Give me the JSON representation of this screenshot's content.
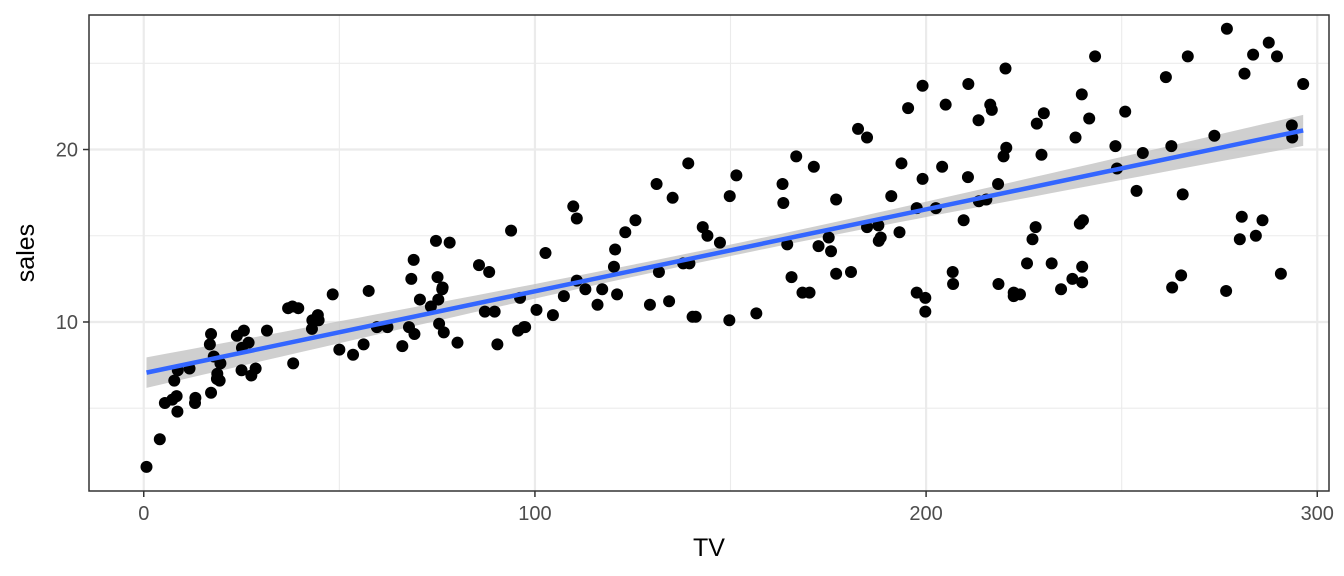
{
  "chart_data": {
    "type": "scatter",
    "xlabel": "TV",
    "ylabel": "sales",
    "xlim": [
      -14,
      303
    ],
    "ylim": [
      0.2,
      27.8
    ],
    "x_ticks": [
      0,
      100,
      200,
      300
    ],
    "x_tick_labels": [
      "0",
      "100",
      "200",
      "300"
    ],
    "y_ticks": [
      10,
      20
    ],
    "y_tick_labels": [
      "10",
      "20"
    ],
    "grid": true,
    "legend": "none",
    "colors": {
      "points": "#000000",
      "fit_line": "#3366ff",
      "confidence_band": "#bfbfbf",
      "grid": "#ebebeb",
      "panel_border": "#333333"
    },
    "fit": {
      "method": "linear",
      "x_range": [
        0.7,
        296.4
      ],
      "intercept": 7.03,
      "slope": 0.0475,
      "band_halfwidth_ends": 0.9,
      "band_halfwidth_center": 0.33,
      "x_center": 147
    },
    "points": [
      [
        0.7,
        1.6
      ],
      [
        4.1,
        3.2
      ],
      [
        5.4,
        5.3
      ],
      [
        7.3,
        5.5
      ],
      [
        7.8,
        6.6
      ],
      [
        8.4,
        5.7
      ],
      [
        8.6,
        4.8
      ],
      [
        8.7,
        7.2
      ],
      [
        11.7,
        7.3
      ],
      [
        13.1,
        5.3
      ],
      [
        13.2,
        5.6
      ],
      [
        16.9,
        8.7
      ],
      [
        17.2,
        9.3
      ],
      [
        17.2,
        5.9
      ],
      [
        17.9,
        8.0
      ],
      [
        18.7,
        6.7
      ],
      [
        18.8,
        7.0
      ],
      [
        19.4,
        6.6
      ],
      [
        19.6,
        7.6
      ],
      [
        23.8,
        9.2
      ],
      [
        25.0,
        7.2
      ],
      [
        25.1,
        8.5
      ],
      [
        25.6,
        9.5
      ],
      [
        26.8,
        8.8
      ],
      [
        27.5,
        6.9
      ],
      [
        28.6,
        7.3
      ],
      [
        31.5,
        9.5
      ],
      [
        36.9,
        10.8
      ],
      [
        38.0,
        10.9
      ],
      [
        38.2,
        7.6
      ],
      [
        39.5,
        10.8
      ],
      [
        43.0,
        9.6
      ],
      [
        43.1,
        10.1
      ],
      [
        44.5,
        10.4
      ],
      [
        44.7,
        10.1
      ],
      [
        48.3,
        11.6
      ],
      [
        50.0,
        8.4
      ],
      [
        53.5,
        8.1
      ],
      [
        56.2,
        8.7
      ],
      [
        57.5,
        11.8
      ],
      [
        59.6,
        9.7
      ],
      [
        62.3,
        9.7
      ],
      [
        66.1,
        8.6
      ],
      [
        67.8,
        9.7
      ],
      [
        68.4,
        12.5
      ],
      [
        69.0,
        13.6
      ],
      [
        69.2,
        9.3
      ],
      [
        70.6,
        11.3
      ],
      [
        73.4,
        10.9
      ],
      [
        74.7,
        14.7
      ],
      [
        75.1,
        12.6
      ],
      [
        75.3,
        11.3
      ],
      [
        75.5,
        9.9
      ],
      [
        76.3,
        11.9
      ],
      [
        76.4,
        12.0
      ],
      [
        76.7,
        9.4
      ],
      [
        78.2,
        14.6
      ],
      [
        80.2,
        8.8
      ],
      [
        85.7,
        13.3
      ],
      [
        87.2,
        10.6
      ],
      [
        88.3,
        12.9
      ],
      [
        89.7,
        10.6
      ],
      [
        90.4,
        8.7
      ],
      [
        93.9,
        15.3
      ],
      [
        95.7,
        9.5
      ],
      [
        96.2,
        11.4
      ],
      [
        97.2,
        9.7
      ],
      [
        97.5,
        9.7
      ],
      [
        100.4,
        10.7
      ],
      [
        102.7,
        14.0
      ],
      [
        104.6,
        10.4
      ],
      [
        107.4,
        11.5
      ],
      [
        109.8,
        16.7
      ],
      [
        110.7,
        12.4
      ],
      [
        110.7,
        16.0
      ],
      [
        112.9,
        11.9
      ],
      [
        116.0,
        11.0
      ],
      [
        117.2,
        11.9
      ],
      [
        120.2,
        13.2
      ],
      [
        120.5,
        14.2
      ],
      [
        121.0,
        11.6
      ],
      [
        123.1,
        15.2
      ],
      [
        125.7,
        15.9
      ],
      [
        129.4,
        11.0
      ],
      [
        131.1,
        18.0
      ],
      [
        131.7,
        12.9
      ],
      [
        134.3,
        11.2
      ],
      [
        135.2,
        17.2
      ],
      [
        137.9,
        13.4
      ],
      [
        139.2,
        19.2
      ],
      [
        139.5,
        13.4
      ],
      [
        140.3,
        10.3
      ],
      [
        141.1,
        10.3
      ],
      [
        142.9,
        15.5
      ],
      [
        144.1,
        15.0
      ],
      [
        147.3,
        14.6
      ],
      [
        149.7,
        10.1
      ],
      [
        149.8,
        17.3
      ],
      [
        151.5,
        18.5
      ],
      [
        156.6,
        10.5
      ],
      [
        163.3,
        18.0
      ],
      [
        163.5,
        16.9
      ],
      [
        164.5,
        14.5
      ],
      [
        165.6,
        12.6
      ],
      [
        166.8,
        19.6
      ],
      [
        168.4,
        11.7
      ],
      [
        170.2,
        11.7
      ],
      [
        171.3,
        19.0
      ],
      [
        172.5,
        14.4
      ],
      [
        175.1,
        14.9
      ],
      [
        175.7,
        14.1
      ],
      [
        177.0,
        17.1
      ],
      [
        177.0,
        12.8
      ],
      [
        180.8,
        12.9
      ],
      [
        182.6,
        21.2
      ],
      [
        184.9,
        15.5
      ],
      [
        184.9,
        20.7
      ],
      [
        187.8,
        15.6
      ],
      [
        187.9,
        14.7
      ],
      [
        188.4,
        14.9
      ],
      [
        191.1,
        17.3
      ],
      [
        193.2,
        15.2
      ],
      [
        193.7,
        19.2
      ],
      [
        195.4,
        22.4
      ],
      [
        197.6,
        11.7
      ],
      [
        197.6,
        16.6
      ],
      [
        199.1,
        18.3
      ],
      [
        199.1,
        23.7
      ],
      [
        199.8,
        11.4
      ],
      [
        199.8,
        10.6
      ],
      [
        202.5,
        16.6
      ],
      [
        204.1,
        19.0
      ],
      [
        205.0,
        22.6
      ],
      [
        206.8,
        12.9
      ],
      [
        206.9,
        12.2
      ],
      [
        209.6,
        15.9
      ],
      [
        210.7,
        18.4
      ],
      [
        210.8,
        23.8
      ],
      [
        213.4,
        21.7
      ],
      [
        213.5,
        17.0
      ],
      [
        215.4,
        17.1
      ],
      [
        216.4,
        22.6
      ],
      [
        216.8,
        22.3
      ],
      [
        218.4,
        18.0
      ],
      [
        218.5,
        12.2
      ],
      [
        219.8,
        19.6
      ],
      [
        220.3,
        24.7
      ],
      [
        220.5,
        20.1
      ],
      [
        222.4,
        11.7
      ],
      [
        222.4,
        11.5
      ],
      [
        224.0,
        11.6
      ],
      [
        225.8,
        13.4
      ],
      [
        227.2,
        14.8
      ],
      [
        228.0,
        15.5
      ],
      [
        228.3,
        21.5
      ],
      [
        229.5,
        19.7
      ],
      [
        230.1,
        22.1
      ],
      [
        232.1,
        13.4
      ],
      [
        234.5,
        11.9
      ],
      [
        237.4,
        12.5
      ],
      [
        238.2,
        20.7
      ],
      [
        239.3,
        15.7
      ],
      [
        239.8,
        23.2
      ],
      [
        239.9,
        13.2
      ],
      [
        239.9,
        12.3
      ],
      [
        240.1,
        15.9
      ],
      [
        241.7,
        21.8
      ],
      [
        243.2,
        25.4
      ],
      [
        248.4,
        20.2
      ],
      [
        248.8,
        18.9
      ],
      [
        250.9,
        22.2
      ],
      [
        253.8,
        17.6
      ],
      [
        255.4,
        19.8
      ],
      [
        261.3,
        24.2
      ],
      [
        262.7,
        20.2
      ],
      [
        262.9,
        12.0
      ],
      [
        265.2,
        12.7
      ],
      [
        265.6,
        17.4
      ],
      [
        266.9,
        25.4
      ],
      [
        273.7,
        20.8
      ],
      [
        276.7,
        11.8
      ],
      [
        276.9,
        27.0
      ],
      [
        280.2,
        14.8
      ],
      [
        280.7,
        16.1
      ],
      [
        281.4,
        24.4
      ],
      [
        283.6,
        25.5
      ],
      [
        284.3,
        15.0
      ],
      [
        286.0,
        15.9
      ],
      [
        287.6,
        26.2
      ],
      [
        289.7,
        25.4
      ],
      [
        290.7,
        12.8
      ],
      [
        293.6,
        20.7
      ],
      [
        293.5,
        21.4
      ],
      [
        296.4,
        23.8
      ]
    ]
  }
}
